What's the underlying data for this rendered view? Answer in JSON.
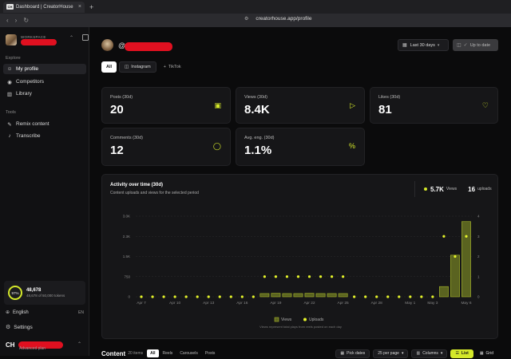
{
  "browser": {
    "tab_title": "Dashboard | CreatorHouse",
    "favicon_text": "CH",
    "close_glyph": "×",
    "newtab_glyph": "+",
    "url": "creatorhouse.app/profile"
  },
  "sidebar": {
    "workspace_label": "WORKSPACE",
    "explore_label": "Explore",
    "explore_items": [
      {
        "label": "My profile",
        "icon": "user-icon",
        "glyph": "☺"
      },
      {
        "label": "Competitors",
        "icon": "eye-icon",
        "glyph": "◉"
      },
      {
        "label": "Library",
        "icon": "book-icon",
        "glyph": "▥"
      }
    ],
    "tools_label": "Tools",
    "tool_items": [
      {
        "label": "Remix content",
        "icon": "wand-icon",
        "glyph": "✎"
      },
      {
        "label": "Transcribe",
        "icon": "mic-icon",
        "glyph": "♪"
      }
    ],
    "tokens": {
      "percent": "97%",
      "used": "48,678",
      "detail": "48,678 of 50,000 tokens"
    },
    "language": {
      "label": "English",
      "code": "EN"
    },
    "settings_label": "Settings",
    "account": {
      "initials": "CH",
      "plan": "Advanced plan"
    }
  },
  "header": {
    "at_symbol": "@",
    "period_label": "Last 30 days",
    "uptodate_label": "Up to date"
  },
  "platform_tabs": [
    {
      "label": "All",
      "active": true
    },
    {
      "label": "Instagram",
      "active": false,
      "icon": "instagram-icon"
    },
    {
      "label": "TikTok",
      "active": false,
      "icon": "plus-icon"
    }
  ],
  "stats": [
    {
      "label": "Posts (30d)",
      "value": "20",
      "icon": "film-icon",
      "glyph": "▣"
    },
    {
      "label": "Views (30d)",
      "value": "8.4K",
      "icon": "play-icon",
      "glyph": "▷"
    },
    {
      "label": "Likes (30d)",
      "value": "81",
      "icon": "heart-icon",
      "glyph": "♡"
    },
    {
      "label": "Comments (30d)",
      "value": "12",
      "icon": "comment-icon",
      "glyph": "◯"
    },
    {
      "label": "Avg. eng. (30d)",
      "value": "1.1%",
      "icon": "percent-icon",
      "glyph": "%"
    }
  ],
  "activity": {
    "title": "Activity over time (30d)",
    "subtitle": "Content uploads and views for the selected period",
    "total_views": "5.7K",
    "views_label": "Views",
    "total_uploads": "16",
    "uploads_label": "uploads",
    "footnote": "Views represent total plays from reels posted on each day"
  },
  "chart_data": {
    "type": "bar",
    "title": "Activity over time (30d)",
    "categories": [
      "Apr 7",
      "Apr 8",
      "Apr 9",
      "Apr 10",
      "Apr 11",
      "Apr 12",
      "Apr 13",
      "Apr 14",
      "Apr 15",
      "Apr 16",
      "Apr 17",
      "Apr 18",
      "Apr 19",
      "Apr 20",
      "Apr 21",
      "Apr 22",
      "Apr 23",
      "Apr 24",
      "Apr 25",
      "Apr 26",
      "Apr 27",
      "Apr 28",
      "Apr 29",
      "Apr 30",
      "May 1",
      "May 2",
      "May 3",
      "May 4",
      "May 5",
      "May 6"
    ],
    "tick_labels": [
      "Apr 7",
      "Apr 10",
      "Apr 13",
      "Apr 16",
      "Apr 19",
      "Apr 22",
      "Apr 25",
      "Apr 28",
      "May 1",
      "May 3",
      "May 6"
    ],
    "series": [
      {
        "name": "Views",
        "axis": "left",
        "values": [
          0,
          0,
          0,
          0,
          0,
          0,
          0,
          0,
          0,
          0,
          0,
          120,
          130,
          120,
          120,
          130,
          120,
          120,
          120,
          0,
          0,
          0,
          0,
          0,
          0,
          0,
          0,
          380,
          1550,
          2800
        ]
      },
      {
        "name": "Uploads",
        "axis": "right",
        "values": [
          0,
          0,
          0,
          0,
          0,
          0,
          0,
          0,
          0,
          0,
          0,
          1,
          1,
          1,
          1,
          1,
          1,
          1,
          1,
          0,
          0,
          0,
          0,
          0,
          0,
          0,
          0,
          3,
          2,
          3
        ]
      }
    ],
    "left_ticks": [
      "0",
      "750",
      "1.5K",
      "2.3K",
      "3.0K"
    ],
    "left_max": 3000,
    "right_ticks": [
      "0",
      "1",
      "2",
      "3",
      "4"
    ],
    "right_max": 4,
    "legend": [
      "Views",
      "Uploads"
    ],
    "legend_position": "bottom",
    "colors": {
      "bar_fill": "#5a6320",
      "bar_stroke": "#a8b82a",
      "dot": "#e6f52a",
      "grid": "#2a2a2d"
    }
  },
  "content_bar": {
    "title": "Content",
    "count": "20 items",
    "filters": [
      "All",
      "Reels",
      "Carousels",
      "Posts"
    ],
    "pick_dates": "Pick dates",
    "per_page": "25 per page",
    "columns": "Columns",
    "list": "List",
    "grid": "Grid"
  }
}
